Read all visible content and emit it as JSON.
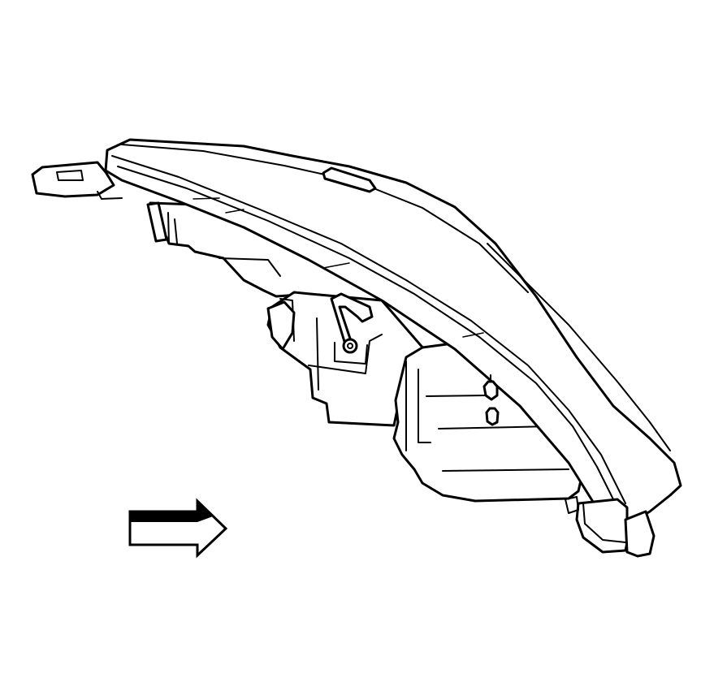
{
  "figure": {
    "subject": "headlamp-assembly-rear-view",
    "indicator": "direction-arrow-right",
    "colors": {
      "line": "#000000",
      "background": "#ffffff"
    }
  }
}
